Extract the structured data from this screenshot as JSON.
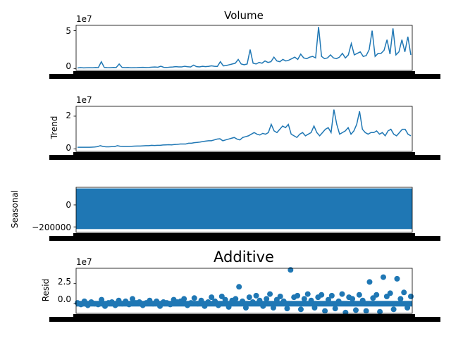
{
  "figure_title": "Additive",
  "chart_data": [
    {
      "type": "line",
      "title": "Volume",
      "ylabel": "",
      "offset_text": "1e7",
      "ylim": [
        -0.25,
        5.7
      ],
      "yticks": [
        0,
        5
      ],
      "ytick_labels": [
        "0",
        "5"
      ],
      "color": "#1f77b4",
      "series": [
        {
          "values": [
            0.08,
            0.12,
            0.09,
            0.1,
            0.11,
            0.1,
            0.13,
            0.12,
            0.9,
            0.14,
            0.12,
            0.11,
            0.15,
            0.13,
            0.6,
            0.14,
            0.12,
            0.13,
            0.1,
            0.11,
            0.12,
            0.14,
            0.16,
            0.13,
            0.15,
            0.18,
            0.2,
            0.17,
            0.3,
            0.16,
            0.14,
            0.18,
            0.2,
            0.25,
            0.22,
            0.21,
            0.3,
            0.24,
            0.2,
            0.45,
            0.25,
            0.22,
            0.3,
            0.25,
            0.28,
            0.35,
            0.3,
            0.28,
            0.9,
            0.35,
            0.4,
            0.5,
            0.6,
            0.7,
            1.2,
            0.6,
            0.5,
            0.6,
            2.5,
            0.7,
            0.6,
            0.8,
            0.7,
            1.0,
            0.8,
            0.9,
            1.5,
            1.0,
            0.9,
            1.2,
            1.0,
            1.1,
            1.3,
            1.5,
            1.2,
            1.9,
            1.4,
            1.3,
            1.5,
            1.6,
            1.4,
            5.5,
            1.6,
            1.3,
            1.4,
            1.8,
            1.4,
            1.3,
            1.5,
            2.0,
            1.4,
            1.8,
            3.3,
            1.8,
            2.0,
            2.2,
            1.6,
            1.7,
            2.5,
            5.0,
            1.6,
            2.0,
            2.0,
            2.4,
            3.8,
            1.9,
            5.3,
            1.8,
            2.2,
            3.8,
            2.2,
            4.2,
            1.8
          ]
        }
      ]
    },
    {
      "type": "line",
      "title": "",
      "ylabel": "Trend",
      "offset_text": "1e7",
      "ylim": [
        -0.15,
        2.6
      ],
      "yticks": [
        0,
        2
      ],
      "ytick_labels": [
        "0",
        "2"
      ],
      "color": "#1f77b4",
      "series": [
        {
          "values": [
            0.1,
            0.1,
            0.1,
            0.1,
            0.1,
            0.11,
            0.12,
            0.14,
            0.2,
            0.15,
            0.13,
            0.13,
            0.14,
            0.14,
            0.2,
            0.16,
            0.15,
            0.15,
            0.15,
            0.16,
            0.17,
            0.18,
            0.18,
            0.19,
            0.2,
            0.2,
            0.22,
            0.21,
            0.22,
            0.22,
            0.24,
            0.25,
            0.26,
            0.25,
            0.27,
            0.28,
            0.3,
            0.3,
            0.3,
            0.35,
            0.35,
            0.38,
            0.4,
            0.42,
            0.45,
            0.48,
            0.5,
            0.5,
            0.55,
            0.6,
            0.62,
            0.5,
            0.55,
            0.6,
            0.65,
            0.7,
            0.6,
            0.55,
            0.7,
            0.75,
            0.8,
            0.9,
            1.0,
            0.9,
            0.85,
            0.95,
            0.9,
            1.0,
            1.5,
            1.1,
            1.0,
            1.2,
            1.4,
            1.3,
            1.5,
            0.9,
            0.8,
            0.7,
            0.9,
            1.0,
            0.8,
            0.9,
            1.0,
            1.4,
            1.0,
            0.8,
            1.0,
            1.2,
            1.3,
            1.0,
            2.4,
            1.5,
            0.9,
            1.0,
            1.1,
            1.3,
            0.9,
            1.1,
            1.5,
            2.3,
            1.2,
            1.0,
            0.9,
            1.0,
            1.0,
            1.1,
            0.9,
            1.0,
            0.8,
            1.1,
            1.2,
            0.9,
            0.8,
            1.0,
            1.2,
            1.2,
            0.9,
            0.8
          ]
        }
      ]
    },
    {
      "type": "area",
      "title": "",
      "ylabel": "Seasonal",
      "offset_text": "",
      "ylim": [
        -250000,
        160000
      ],
      "yticks": [
        0,
        -200000
      ],
      "ytick_labels": [
        "0",
        "−200000"
      ],
      "color": "#1f77b4",
      "series": [
        {
          "band_high": 150000,
          "band_low": -220000
        }
      ]
    },
    {
      "type": "scatter",
      "title": "",
      "ylabel": "Resid",
      "offset_text": "1e7",
      "ylim": [
        -1.2,
        4.4
      ],
      "yticks": [
        0,
        2.5
      ],
      "ytick_labels": [
        "0.0",
        "2.5"
      ],
      "color": "#1f77b4",
      "series": [
        {
          "values": [
            0.1,
            -0.1,
            0.3,
            -0.2,
            0.2,
            0.0,
            -0.1,
            0.5,
            -0.3,
            0.1,
            0.2,
            -0.2,
            0.4,
            0.0,
            0.3,
            -0.1,
            0.6,
            0.1,
            0.2,
            -0.2,
            0.1,
            0.4,
            0.0,
            0.3,
            -0.3,
            0.2,
            0.1,
            -0.1,
            0.5,
            0.2,
            0.3,
            0.6,
            -0.2,
            0.1,
            0.7,
            0.0,
            0.4,
            -0.3,
            0.2,
            0.8,
            0.3,
            -0.2,
            0.9,
            0.5,
            -0.4,
            0.4,
            0.6,
            2.1,
            0.3,
            -0.5,
            0.8,
            0.2,
            1.0,
            0.4,
            -0.3,
            0.6,
            1.2,
            -0.5,
            0.5,
            0.9,
            0.3,
            -0.6,
            4.2,
            0.8,
            1.0,
            -0.7,
            0.6,
            1.2,
            0.4,
            -0.5,
            0.8,
            1.1,
            -0.9,
            0.5,
            1.0,
            -0.6,
            0.3,
            1.2,
            -1.1,
            0.8,
            0.6,
            -0.8,
            1.1,
            0.4,
            -0.9,
            2.7,
            0.7,
            1.1,
            -1.0,
            3.3,
            0.9,
            1.3,
            -0.7,
            3.1,
            0.6,
            1.4,
            -0.5,
            0.9
          ]
        }
      ]
    }
  ]
}
